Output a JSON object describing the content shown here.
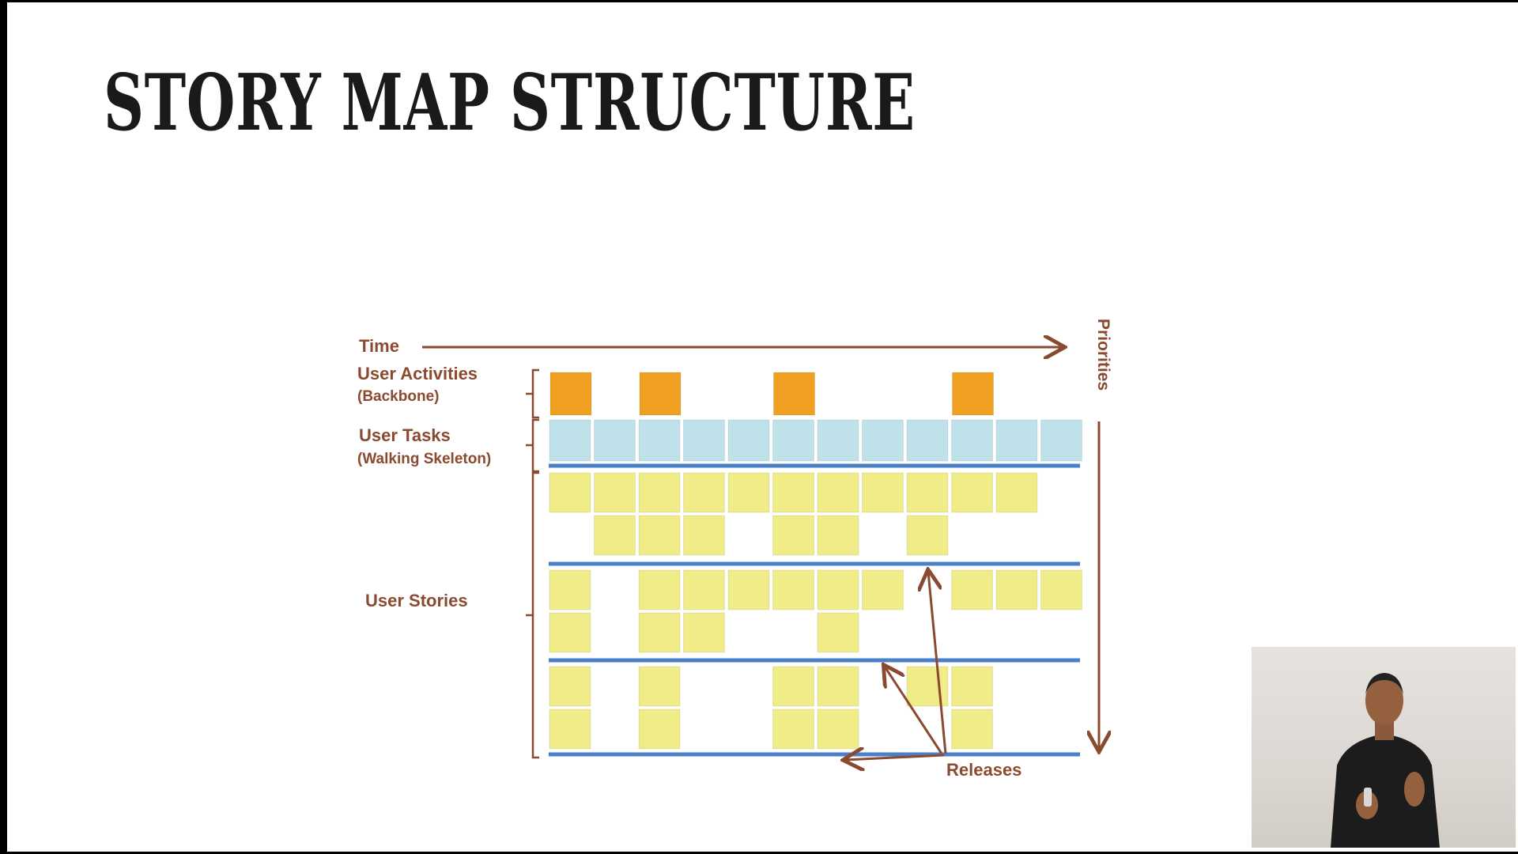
{
  "slide": {
    "title": "STORY MAP STRUCTURE"
  },
  "diagram": {
    "time_label": "Time",
    "priorities_label": "Priorities",
    "activities_label_line1": "User Activities",
    "activities_label_line2": "(Backbone)",
    "tasks_label_line1": "User Tasks",
    "tasks_label_line2": "(Walking Skeleton)",
    "stories_label": "User Stories",
    "releases_label": "Releases",
    "colors": {
      "label": "#8a4a30",
      "activity": "#f0a020",
      "task": "#bfe2ea",
      "story": "#f0ec88",
      "release_line": "#4a80c8"
    },
    "activity_columns": [
      0,
      2,
      5,
      9
    ],
    "task_columns": 12,
    "release_1_rows": [
      [
        0,
        1,
        2,
        3,
        4,
        5,
        6,
        7,
        8,
        9,
        10
      ],
      [
        1,
        2,
        3,
        5,
        6,
        8
      ]
    ],
    "release_2_rows": [
      [
        0,
        2,
        3,
        4,
        5,
        6,
        7,
        9,
        10,
        11
      ],
      [
        0,
        2,
        3,
        6
      ]
    ],
    "release_3_rows": [
      [
        0,
        2,
        5,
        6,
        8,
        9
      ],
      [
        0,
        2,
        5,
        6,
        9
      ]
    ]
  },
  "presenter_video": {
    "icon": "webcam-presenter"
  }
}
